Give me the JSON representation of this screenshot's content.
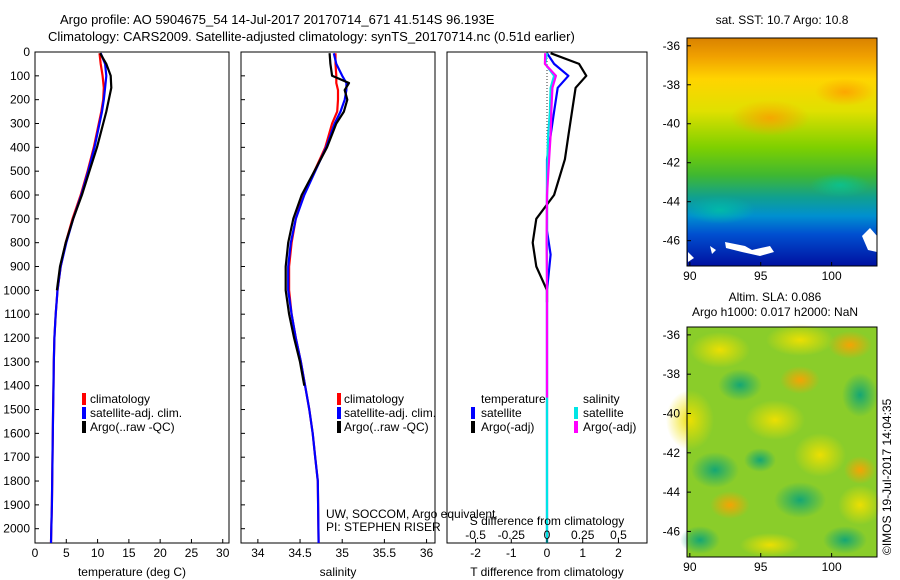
{
  "header": {
    "line1": "Argo profile: AO 5904675_54 14-Jul-2017 20170714_671 41.514S 96.193E",
    "line2": "Climatology: CARS2009. Satellite-adjusted climatology: synTS_20170714.nc (0.51d earlier)"
  },
  "footer": {
    "credit_line1": "UW, SOCCOM, Argo equivalent",
    "credit_line2": "PI: STEPHEN RISER",
    "timestamp": "©IMOS 19-Jul-2017 14:04:35"
  },
  "colors": {
    "climatology": "#ff0000",
    "satellite": "#0000ff",
    "argo": "#000000",
    "sal_satellite": "#00e5e5",
    "sal_argo": "#ff00ff"
  },
  "chart_data": [
    {
      "type": "line",
      "xlabel": "temperature (deg C)",
      "xlim": [
        0,
        31
      ],
      "ylim": [
        0,
        2060
      ],
      "y_inverted": true,
      "xticks": [
        0,
        5,
        10,
        15,
        20,
        25,
        30
      ],
      "yticks": [
        0,
        100,
        200,
        300,
        400,
        500,
        600,
        700,
        800,
        900,
        1000,
        1100,
        1200,
        1300,
        1400,
        1500,
        1600,
        1700,
        1800,
        1900,
        2000
      ],
      "legend": [
        "climatology",
        "satellite-adj. clim.",
        "Argo(..raw -QC)"
      ],
      "legend_position": "center-right",
      "series": [
        {
          "name": "climatology",
          "color": "#ff0000",
          "x": [
            10.3,
            10.5,
            10.8,
            11,
            10.9,
            10.6,
            10.2,
            9.4,
            8.4,
            7.3,
            6.0,
            4.9,
            4.1,
            3.6,
            3.3,
            3.1,
            3.0,
            2.95,
            2.9,
            2.85,
            2.8,
            2.75,
            2.7,
            2.6,
            2.55
          ],
          "y": [
            5,
            50,
            100,
            150,
            200,
            250,
            300,
            400,
            500,
            600,
            700,
            800,
            900,
            1000,
            1100,
            1200,
            1300,
            1400,
            1500,
            1600,
            1700,
            1800,
            1900,
            2000,
            2060
          ]
        },
        {
          "name": "satellite-adj. clim.",
          "color": "#0000ff",
          "x": [
            10.5,
            11.2,
            11.4,
            11.2,
            11,
            10.7,
            10.3,
            9.5,
            8.5,
            7.4,
            6.1,
            5.0,
            4.1,
            3.6,
            3.3,
            3.1,
            3.0,
            2.95,
            2.9,
            2.85,
            2.8,
            2.75,
            2.7,
            2.6,
            2.55
          ],
          "y": [
            5,
            50,
            100,
            150,
            200,
            250,
            300,
            400,
            500,
            600,
            700,
            800,
            900,
            1000,
            1100,
            1200,
            1300,
            1400,
            1500,
            1600,
            1700,
            1800,
            1900,
            2000,
            2060
          ]
        },
        {
          "name": "Argo(..raw -QC)",
          "color": "#000000",
          "x": [
            10.4,
            11.4,
            12.1,
            12.2,
            11.8,
            11.4,
            10.9,
            9.9,
            8.7,
            7.5,
            6.1,
            4.9,
            4.0,
            3.5
          ],
          "y": [
            5,
            50,
            100,
            150,
            200,
            250,
            300,
            400,
            500,
            600,
            700,
            800,
            900,
            1000
          ]
        }
      ]
    },
    {
      "type": "line",
      "xlabel": "salinity",
      "xlim": [
        33.8,
        36.1
      ],
      "ylim": [
        0,
        2060
      ],
      "y_inverted": true,
      "xticks": [
        34,
        34.5,
        35,
        35.5,
        36
      ],
      "legend": [
        "climatology",
        "satellite-adj. clim.",
        "Argo(..raw -QC)"
      ],
      "legend_position": "center-right",
      "series": [
        {
          "name": "climatology",
          "color": "#ff0000",
          "x": [
            34.92,
            34.92,
            34.93,
            34.93,
            34.95,
            34.95,
            34.94,
            34.88,
            34.8,
            34.67,
            34.54,
            34.45,
            34.4,
            34.37,
            34.37,
            34.4,
            34.45,
            34.51,
            34.56,
            34.61,
            34.65,
            34.68,
            34.71,
            34.72
          ],
          "y": [
            5,
            50,
            100,
            130,
            160,
            200,
            250,
            300,
            400,
            500,
            600,
            700,
            800,
            900,
            1000,
            1100,
            1200,
            1300,
            1400,
            1500,
            1600,
            1700,
            1800,
            2060
          ]
        },
        {
          "name": "satellite-adj. clim.",
          "color": "#0000ff",
          "x": [
            34.9,
            34.93,
            35.0,
            35.05,
            35.05,
            35.03,
            34.98,
            34.91,
            34.81,
            34.68,
            34.55,
            34.45,
            34.39,
            34.36,
            34.36,
            34.4,
            34.45,
            34.51,
            34.56,
            34.61,
            34.65,
            34.68,
            34.71,
            34.72
          ],
          "y": [
            5,
            50,
            100,
            130,
            160,
            200,
            250,
            300,
            400,
            500,
            600,
            700,
            800,
            900,
            1000,
            1100,
            1200,
            1300,
            1400,
            1500,
            1600,
            1700,
            1800,
            2060
          ]
        },
        {
          "name": "Argo(..raw -QC)",
          "color": "#000000",
          "x": [
            34.85,
            34.86,
            34.88,
            35.08,
            35.03,
            35.06,
            35.02,
            34.93,
            34.82,
            34.67,
            34.52,
            34.42,
            34.36,
            34.33,
            34.33,
            34.37,
            34.43,
            34.5,
            34.55
          ],
          "y": [
            5,
            50,
            100,
            130,
            160,
            200,
            250,
            300,
            400,
            500,
            600,
            700,
            800,
            900,
            1000,
            1100,
            1200,
            1300,
            1400
          ]
        }
      ]
    },
    {
      "type": "line",
      "xlabel": "T difference from climatology",
      "xlabel_top": "S difference from climatology",
      "xlim": [
        -2.8,
        2.8
      ],
      "ylim": [
        0,
        2060
      ],
      "y_inverted": true,
      "xticks": [
        -2,
        -1,
        0,
        1,
        2
      ],
      "xticks_top": [
        "-0.5",
        "-0.25",
        "0",
        "0.25",
        "0.5"
      ],
      "legend_titles": [
        "temperature",
        "salinity"
      ],
      "legend": [
        "satellite",
        "Argo(-adj)",
        "satellite",
        "Argo(-adj)"
      ],
      "legend_position": "center",
      "series": [
        {
          "name": "satellite",
          "group": "temperature",
          "color": "#0000ff",
          "x": [
            0,
            0.2,
            0.6,
            0.3,
            0.2,
            0.1,
            0,
            0,
            0,
            0,
            0.05,
            0.1,
            0,
            0,
            0,
            0,
            0,
            0,
            0
          ],
          "y": [
            5,
            50,
            100,
            150,
            250,
            350,
            450,
            550,
            650,
            750,
            800,
            850,
            1000,
            1200,
            1400,
            1600,
            1800,
            2000,
            2060
          ]
        },
        {
          "name": "Argo(-adj)",
          "group": "temperature",
          "color": "#000000",
          "x": [
            0.1,
            0.9,
            1.1,
            0.8,
            0.7,
            0.6,
            0.5,
            0.2,
            -0.3,
            -0.4,
            -0.3,
            0,
            0
          ],
          "y": [
            5,
            50,
            100,
            150,
            250,
            350,
            450,
            600,
            700,
            800,
            900,
            1000,
            1050
          ]
        },
        {
          "name": "satellite",
          "group": "salinity",
          "color": "#00e5e5",
          "x": [
            0,
            -0.05,
            0.2,
            0.1,
            0.08,
            0.03,
            0.01,
            0,
            0,
            0,
            0,
            0,
            0
          ],
          "y": [
            5,
            50,
            100,
            150,
            250,
            350,
            450,
            600,
            800,
            1000,
            1400,
            1800,
            2060
          ]
        },
        {
          "name": "Argo(-adj)",
          "group": "salinity",
          "color": "#ff00ff",
          "x": [
            -0.05,
            -0.06,
            0.25,
            0.15,
            0.12,
            0.1,
            0.06,
            0,
            -0.01,
            0,
            0,
            0,
            0
          ],
          "y": [
            5,
            50,
            100,
            150,
            250,
            350,
            450,
            600,
            800,
            1000,
            1200,
            1400,
            1450
          ]
        }
      ]
    },
    {
      "type": "heatmap",
      "title_line1": "sat. SST: 10.7  Argo: 10.8",
      "xlim": [
        89.8,
        103.2
      ],
      "ylim": [
        -47.3,
        -35.6
      ],
      "xticks": [
        90,
        95,
        100
      ],
      "yticks": [
        -36,
        -38,
        -40,
        -42,
        -44,
        -46
      ]
    },
    {
      "type": "heatmap",
      "title_line1": "Altim. SLA: 0.086",
      "title_line2": "Argo h1000: 0.017 h2000: NaN",
      "xlim": [
        89.8,
        103.2
      ],
      "ylim": [
        -47.3,
        -35.6
      ],
      "xticks": [
        90,
        95,
        100
      ],
      "yticks": [
        -36,
        -38,
        -40,
        -42,
        -44,
        -46
      ]
    }
  ]
}
